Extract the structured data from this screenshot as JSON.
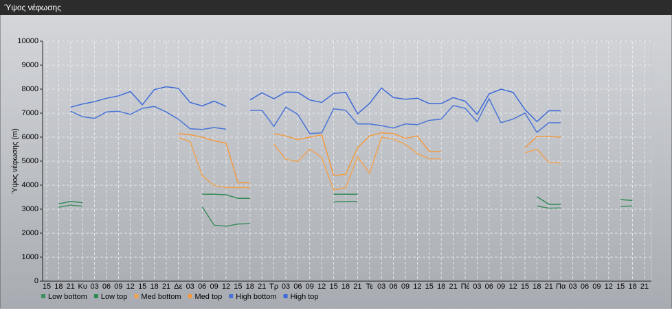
{
  "chart_data": {
    "type": "line",
    "title": "Ύψος νέφωσης",
    "y_label": "Ύψος νέφωσης (m)",
    "categories": [
      "15",
      "18",
      "21",
      "Κυ",
      "03",
      "06",
      "09",
      "12",
      "15",
      "18",
      "21",
      "Δε",
      "03",
      "06",
      "09",
      "12",
      "15",
      "18",
      "21",
      "Τρ",
      "03",
      "06",
      "09",
      "12",
      "15",
      "18",
      "21",
      "Τε",
      "03",
      "06",
      "09",
      "12",
      "15",
      "18",
      "21",
      "Πέ",
      "03",
      "06",
      "09",
      "12",
      "15",
      "18",
      "21",
      "Πα",
      "03",
      "06",
      "09",
      "12",
      "15",
      "18",
      "21"
    ],
    "ylim": [
      0,
      10000
    ],
    "yticks": [
      0,
      1000,
      2000,
      3000,
      4000,
      5000,
      6000,
      7000,
      8000,
      9000,
      10000
    ],
    "grid": true,
    "series": [
      {
        "name": "Low bottom",
        "color": "#3f8f5f",
        "values": [
          null,
          3080,
          3170,
          3120,
          null,
          null,
          null,
          null,
          null,
          null,
          null,
          null,
          null,
          3100,
          2330,
          2290,
          2380,
          2400,
          null,
          null,
          null,
          null,
          null,
          null,
          3300,
          3320,
          3320,
          null,
          null,
          null,
          null,
          null,
          null,
          null,
          null,
          null,
          null,
          null,
          null,
          null,
          null,
          3130,
          3040,
          3050,
          null,
          null,
          null,
          null,
          3110,
          3130,
          null
        ]
      },
      {
        "name": "Low top",
        "color": "#2f8a55",
        "values": [
          null,
          3220,
          3320,
          3270,
          null,
          null,
          null,
          null,
          null,
          null,
          null,
          null,
          null,
          3620,
          3620,
          3600,
          3450,
          3450,
          null,
          null,
          null,
          null,
          null,
          null,
          3620,
          3620,
          3620,
          null,
          null,
          null,
          null,
          null,
          null,
          null,
          null,
          null,
          null,
          null,
          null,
          null,
          null,
          3520,
          3200,
          3200,
          null,
          null,
          null,
          null,
          3400,
          3360,
          null
        ]
      },
      {
        "name": "Med bottom",
        "color": "#f0a352",
        "values": [
          null,
          null,
          null,
          null,
          null,
          null,
          null,
          null,
          null,
          null,
          null,
          5980,
          5820,
          4400,
          3980,
          3900,
          3900,
          3900,
          null,
          5700,
          5080,
          4980,
          5500,
          5150,
          3800,
          3900,
          5180,
          4500,
          6000,
          5920,
          5700,
          5320,
          5100,
          5100,
          null,
          null,
          null,
          null,
          null,
          null,
          5350,
          5500,
          4950,
          4920,
          null,
          null,
          null,
          null,
          null,
          null,
          null
        ]
      },
      {
        "name": "Med top",
        "color": "#f29a40",
        "values": [
          null,
          null,
          null,
          null,
          null,
          null,
          null,
          null,
          null,
          null,
          null,
          6150,
          6100,
          6000,
          5850,
          5750,
          4100,
          4100,
          null,
          6150,
          6050,
          5900,
          6000,
          6100,
          4400,
          4450,
          5550,
          6050,
          6180,
          6150,
          5950,
          6050,
          5400,
          5400,
          null,
          null,
          null,
          null,
          null,
          null,
          5550,
          6030,
          6030,
          6000,
          null,
          null,
          null,
          null,
          null,
          null,
          null
        ]
      },
      {
        "name": "High bottom",
        "color": "#4a74d6",
        "values": [
          null,
          null,
          7080,
          6850,
          6780,
          7050,
          7080,
          6950,
          7200,
          7280,
          7050,
          6750,
          6350,
          6320,
          6400,
          6330,
          null,
          7120,
          7120,
          6450,
          7250,
          6950,
          6150,
          6180,
          7180,
          7120,
          6550,
          6550,
          6480,
          6380,
          6550,
          6520,
          6700,
          6750,
          7320,
          7200,
          6650,
          7600,
          6600,
          6750,
          7000,
          6200,
          6600,
          6600,
          null,
          null,
          null,
          null,
          null,
          null,
          null
        ]
      },
      {
        "name": "High top",
        "color": "#3d6ad8",
        "values": [
          null,
          null,
          7250,
          7380,
          7480,
          7620,
          7720,
          7900,
          7350,
          7980,
          8100,
          8030,
          7450,
          7300,
          7500,
          7280,
          null,
          7550,
          7850,
          7600,
          7880,
          7870,
          7550,
          7450,
          7820,
          7870,
          6970,
          7400,
          8050,
          7650,
          7580,
          7620,
          7400,
          7400,
          7650,
          7500,
          6950,
          7800,
          8000,
          7870,
          7150,
          6650,
          7100,
          7100,
          null,
          null,
          null,
          null,
          null,
          null,
          null
        ]
      }
    ]
  }
}
